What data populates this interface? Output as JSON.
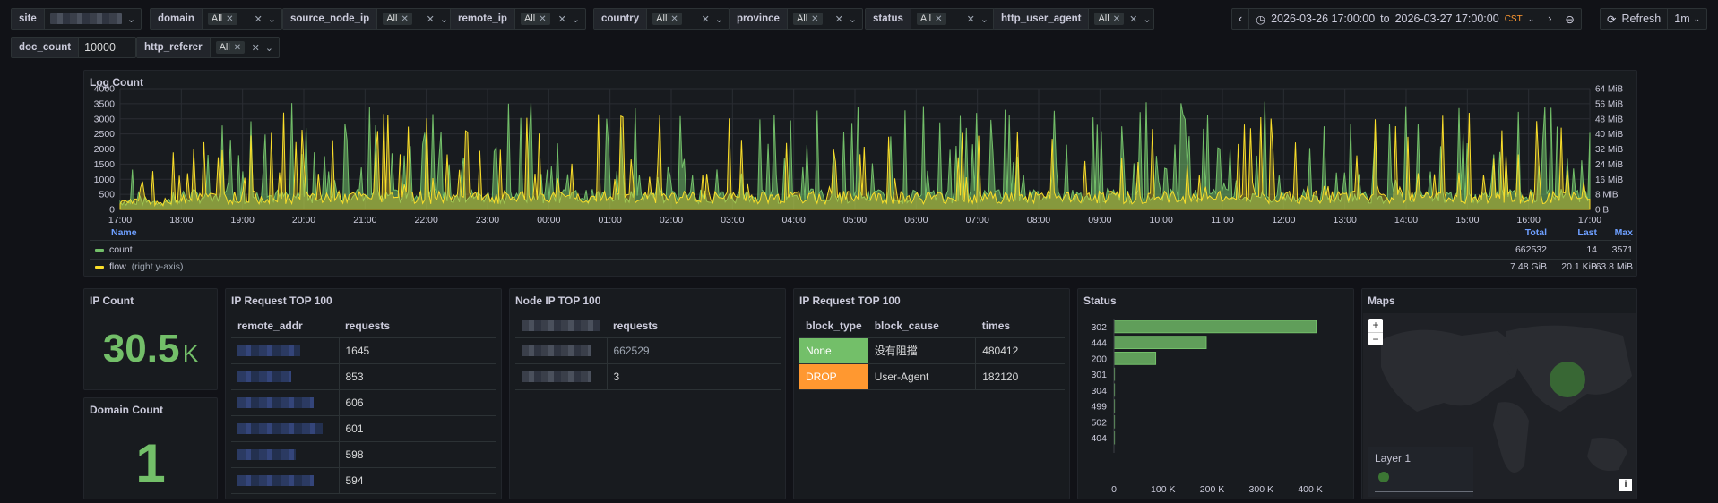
{
  "variables": [
    {
      "label": "site",
      "value": "",
      "masked": true
    },
    {
      "label": "domain",
      "value": "All"
    },
    {
      "label": "source_node_ip",
      "value": "All"
    },
    {
      "label": "remote_ip",
      "value": "All"
    },
    {
      "label": "country",
      "value": "All"
    },
    {
      "label": "province",
      "value": "All"
    },
    {
      "label": "status",
      "value": "All"
    },
    {
      "label": "http_user_agent",
      "value": "All"
    },
    {
      "label": "doc_count",
      "value": "10000"
    },
    {
      "label": "http_referer",
      "value": "All"
    }
  ],
  "time_range": {
    "from": "2026-03-26 17:00:00",
    "to_word": "to",
    "to": "2026-03-27 17:00:00",
    "tz": "CST"
  },
  "refresh": {
    "label": "Refresh",
    "interval": "1m"
  },
  "log_count": {
    "title": "Log Count",
    "left_ticks": [
      "4000",
      "3500",
      "3000",
      "2500",
      "2000",
      "1500",
      "1000",
      "500",
      "0"
    ],
    "right_ticks": [
      "64 MiB",
      "56 MiB",
      "48 MiB",
      "40 MiB",
      "32 MiB",
      "24 MiB",
      "16 MiB",
      "8 MiB",
      "0 B"
    ],
    "x_ticks": [
      "17:00",
      "18:00",
      "19:00",
      "20:00",
      "21:00",
      "22:00",
      "23:00",
      "00:00",
      "01:00",
      "02:00",
      "03:00",
      "04:00",
      "05:00",
      "06:00",
      "07:00",
      "08:00",
      "09:00",
      "10:00",
      "11:00",
      "12:00",
      "13:00",
      "14:00",
      "15:00",
      "16:00",
      "17:00"
    ],
    "legend_header": {
      "name": "Name",
      "total": "Total",
      "last": "Last",
      "max": "Max"
    },
    "series": [
      {
        "name": "count",
        "suffix": "",
        "color": "#73bf69",
        "total": "662532",
        "last": "14",
        "max": "3571"
      },
      {
        "name": "flow",
        "suffix": "(right y-axis)",
        "color": "#fade2a",
        "total": "7.48 GiB",
        "last": "20.1 KiB",
        "max": "63.8 MiB"
      }
    ]
  },
  "ip_count": {
    "title": "IP Count",
    "value": "30.5",
    "unit": "K"
  },
  "domain_count": {
    "title": "Domain Count",
    "value": "1"
  },
  "ip_request": {
    "title": "IP Request TOP 100",
    "columns": [
      "remote_addr",
      "requests"
    ],
    "rows": [
      "1645",
      "853",
      "606",
      "601",
      "598",
      "594"
    ]
  },
  "node_ip": {
    "title": "Node IP TOP 100",
    "columns": [
      "",
      "requests"
    ],
    "rows": [
      "662529",
      "3"
    ]
  },
  "ip_block": {
    "title": "IP Request TOP 100",
    "columns": [
      "block_type",
      "block_cause",
      "times"
    ],
    "rows": [
      {
        "type": "None",
        "cause": "没有阻擋",
        "times": "480412",
        "color": "#73bf69"
      },
      {
        "type": "DROP",
        "cause": "User-Agent",
        "times": "182120",
        "color": "#ff9830"
      }
    ]
  },
  "status": {
    "title": "Status",
    "chart_data": {
      "type": "bar",
      "orientation": "horizontal",
      "categories": [
        "302",
        "444",
        "200",
        "301",
        "304",
        "499",
        "502",
        "404"
      ],
      "values": [
        412000,
        188000,
        85000,
        400,
        300,
        200,
        100,
        50
      ],
      "x_ticks": [
        "0",
        "100 K",
        "200 K",
        "300 K",
        "400 K"
      ],
      "xlim": [
        0,
        420000
      ]
    }
  },
  "maps": {
    "title": "Maps",
    "layer": "Layer 1",
    "zoom_in": "+",
    "zoom_out": "−",
    "info": "i"
  }
}
